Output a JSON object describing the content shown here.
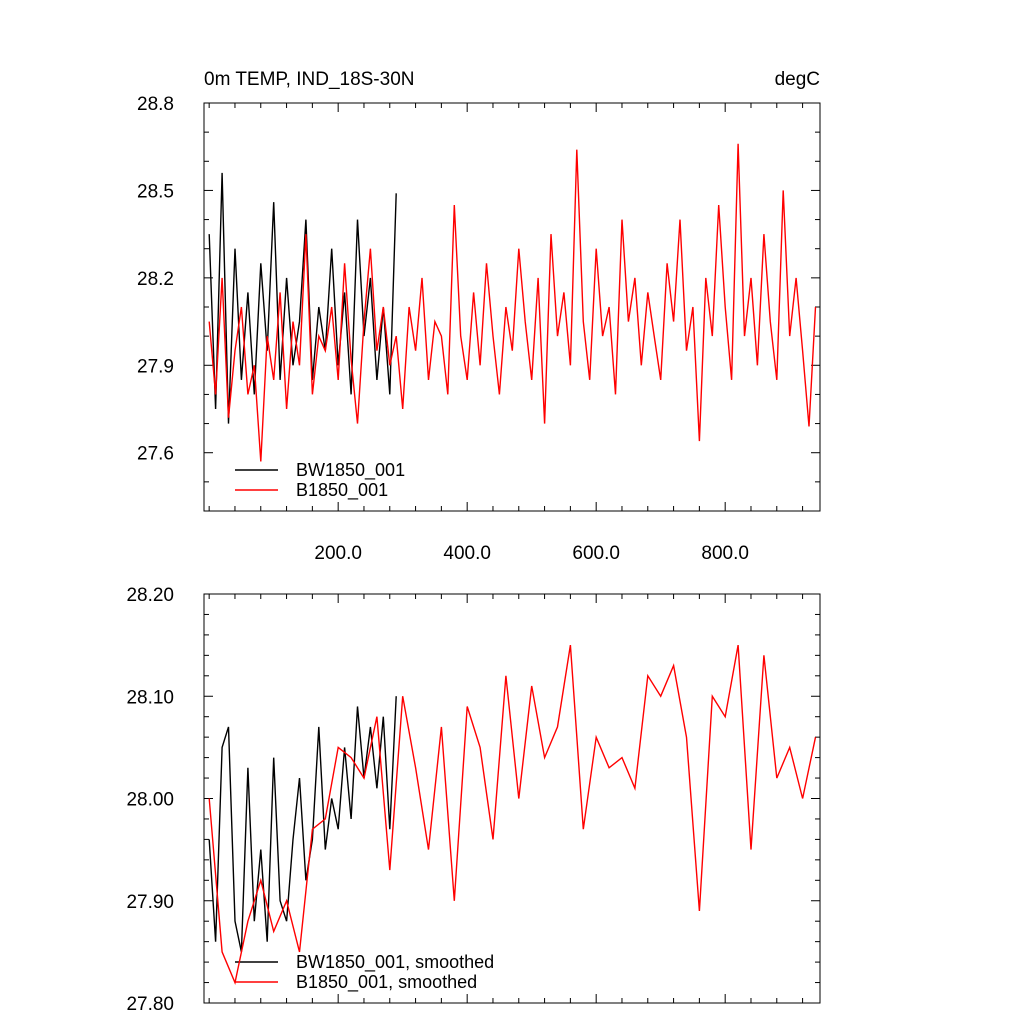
{
  "chart_data": [
    {
      "type": "line",
      "title": "0m TEMP, IND_18S-30N",
      "title_right": "degC",
      "xlim": [
        -8,
        947
      ],
      "ylim": [
        27.4,
        28.8
      ],
      "xticks": [
        {
          "value": 200,
          "label": "200.0"
        },
        {
          "value": 400,
          "label": "400.0"
        },
        {
          "value": 600,
          "label": "600.0"
        },
        {
          "value": 800,
          "label": "800.0"
        }
      ],
      "yticks": [
        27.6,
        27.9,
        28.2,
        28.5,
        28.8
      ],
      "series": [
        {
          "name": "BW1850_001",
          "color": "#000000",
          "x": [
            0,
            10,
            20,
            30,
            40,
            50,
            60,
            70,
            80,
            90,
            100,
            110,
            120,
            130,
            140,
            150,
            160,
            170,
            180,
            190,
            200,
            210,
            220,
            230,
            240,
            250,
            260,
            270,
            280,
            290
          ],
          "values": [
            28.35,
            27.75,
            28.56,
            27.7,
            28.3,
            27.85,
            28.15,
            27.8,
            28.25,
            27.95,
            28.46,
            27.85,
            28.2,
            27.9,
            28.05,
            28.4,
            27.85,
            28.1,
            27.95,
            28.3,
            27.9,
            28.15,
            27.8,
            28.4,
            28.0,
            28.2,
            27.85,
            28.1,
            27.8,
            28.49
          ]
        },
        {
          "name": "B1850_001",
          "color": "#ff0000",
          "x": [
            0,
            10,
            20,
            30,
            40,
            50,
            60,
            70,
            80,
            90,
            100,
            110,
            120,
            130,
            140,
            150,
            160,
            170,
            180,
            190,
            200,
            210,
            220,
            230,
            240,
            250,
            260,
            270,
            280,
            290,
            300,
            310,
            320,
            330,
            340,
            350,
            360,
            370,
            380,
            390,
            400,
            410,
            420,
            430,
            440,
            450,
            460,
            470,
            480,
            490,
            500,
            510,
            520,
            530,
            540,
            550,
            560,
            570,
            580,
            590,
            600,
            610,
            620,
            630,
            640,
            650,
            660,
            670,
            680,
            690,
            700,
            710,
            720,
            730,
            740,
            750,
            760,
            770,
            780,
            790,
            800,
            810,
            820,
            830,
            840,
            850,
            860,
            870,
            880,
            890,
            900,
            910,
            920,
            930,
            940
          ],
          "values": [
            28.05,
            27.8,
            28.2,
            27.72,
            27.95,
            28.1,
            27.8,
            27.9,
            27.57,
            28.0,
            27.85,
            28.15,
            27.75,
            28.05,
            27.9,
            28.35,
            27.8,
            28.0,
            27.95,
            28.1,
            27.85,
            28.25,
            27.92,
            27.7,
            28.05,
            28.3,
            27.95,
            28.1,
            27.9,
            28.0,
            27.75,
            28.1,
            27.95,
            28.2,
            27.85,
            28.05,
            28.0,
            27.8,
            28.45,
            28.0,
            27.85,
            28.15,
            27.9,
            28.25,
            28.0,
            27.8,
            28.1,
            27.95,
            28.3,
            28.05,
            27.85,
            28.2,
            27.7,
            28.35,
            28.0,
            28.15,
            27.9,
            28.64,
            28.05,
            27.85,
            28.3,
            28.0,
            28.1,
            27.8,
            28.4,
            28.05,
            28.2,
            27.9,
            28.15,
            28.0,
            27.85,
            28.25,
            28.05,
            28.4,
            27.95,
            28.1,
            27.64,
            28.2,
            28.0,
            28.45,
            28.1,
            27.85,
            28.66,
            28.0,
            28.2,
            27.9,
            28.35,
            28.05,
            27.85,
            28.5,
            28.0,
            28.2,
            27.95,
            27.69,
            28.1
          ]
        }
      ]
    },
    {
      "type": "line",
      "xlim": [
        -8,
        947
      ],
      "ylim": [
        27.8,
        28.2
      ],
      "xticks": [
        200,
        400,
        600,
        800
      ],
      "yticks": [
        {
          "value": 27.8,
          "label": "27.80"
        },
        {
          "value": 27.9,
          "label": "27.90"
        },
        {
          "value": 28.0,
          "label": "28.00"
        },
        {
          "value": 28.1,
          "label": "28.10"
        },
        {
          "value": 28.2,
          "label": "28.20"
        }
      ],
      "series": [
        {
          "name": "BW1850_001, smoothed",
          "color": "#000000",
          "x": [
            0,
            10,
            20,
            30,
            40,
            50,
            60,
            70,
            80,
            90,
            100,
            110,
            120,
            130,
            140,
            150,
            160,
            170,
            180,
            190,
            200,
            210,
            220,
            230,
            240,
            250,
            260,
            270,
            280,
            290
          ],
          "values": [
            27.96,
            27.86,
            28.05,
            28.07,
            27.88,
            27.85,
            28.03,
            27.88,
            27.95,
            27.86,
            28.04,
            27.9,
            27.88,
            27.96,
            28.02,
            27.92,
            27.96,
            28.07,
            27.95,
            28.0,
            27.97,
            28.05,
            27.98,
            28.09,
            28.02,
            28.07,
            28.01,
            28.08,
            27.97,
            28.1
          ]
        },
        {
          "name": "B1850_001, smoothed",
          "color": "#ff0000",
          "x": [
            0,
            20,
            40,
            60,
            80,
            100,
            120,
            140,
            160,
            180,
            200,
            220,
            240,
            260,
            280,
            300,
            320,
            340,
            360,
            380,
            400,
            420,
            440,
            460,
            480,
            500,
            520,
            540,
            560,
            580,
            600,
            620,
            640,
            660,
            680,
            700,
            720,
            740,
            760,
            780,
            800,
            820,
            840,
            860,
            880,
            900,
            920,
            940
          ],
          "values": [
            28.0,
            27.85,
            27.82,
            27.88,
            27.92,
            27.87,
            27.9,
            27.85,
            27.97,
            27.98,
            28.05,
            28.04,
            28.02,
            28.08,
            27.93,
            28.1,
            28.03,
            27.95,
            28.07,
            27.9,
            28.09,
            28.05,
            27.96,
            28.12,
            28.0,
            28.11,
            28.04,
            28.07,
            28.15,
            27.97,
            28.06,
            28.03,
            28.04,
            28.01,
            28.12,
            28.1,
            28.13,
            28.06,
            27.89,
            28.1,
            28.08,
            28.15,
            27.95,
            28.14,
            28.02,
            28.05,
            28.0,
            28.06
          ]
        }
      ]
    }
  ]
}
